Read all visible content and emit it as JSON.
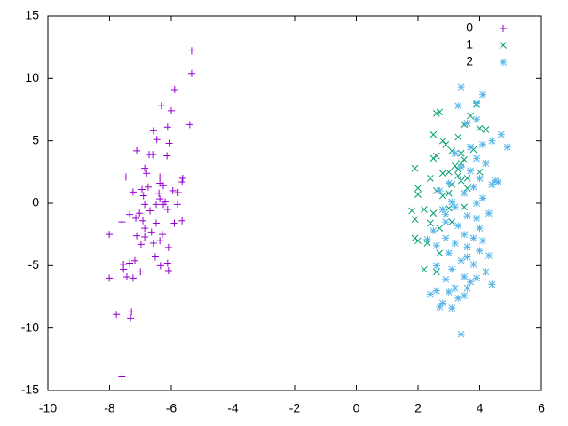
{
  "chart_data": {
    "type": "scatter",
    "xlim": [
      -10,
      6
    ],
    "xticks": [
      -10,
      -8,
      -6,
      -4,
      -2,
      0,
      2,
      4,
      6
    ],
    "ylim": [
      -15,
      15
    ],
    "yticks": [
      -15,
      -10,
      -5,
      0,
      5,
      10,
      15
    ],
    "legend": "top right",
    "series": [
      {
        "name": "0",
        "color": "#9400d3",
        "marker": "plus",
        "x": [
          -5.34,
          -5.34,
          -5.89,
          -6.32,
          -6.0,
          -5.4,
          -6.58,
          -6.12,
          -6.47,
          -6.07,
          -7.12,
          -6.6,
          -6.72,
          -6.14,
          -6.86,
          -7.47,
          -5.63,
          -5.65,
          -6.8,
          -6.37,
          -6.37,
          -6.26,
          -6.75,
          -6.95,
          -5.95,
          -7.24,
          -5.78,
          -6.4,
          -6.9,
          -6.37,
          -6.26,
          -6.2,
          -6.49,
          -6.86,
          -5.8,
          -6.69,
          -7.35,
          -7.03,
          -7.15,
          -6.92,
          -6.12,
          -5.65,
          -5.9,
          -7.6,
          -6.49,
          -6.86,
          -6.64,
          -7.12,
          -6.86,
          -6.29,
          -8.01,
          -6.37,
          -6.58,
          -6.98,
          -6.09,
          -6.52,
          -7.18,
          -7.35,
          -7.55,
          -6.12,
          -6.35,
          -7.55,
          -6.09,
          -7.0,
          -7.44,
          -8.01,
          -7.24,
          -7.78,
          -7.29,
          -7.32,
          -7.6
        ],
        "values": [
          12.2,
          10.4,
          9.1,
          7.8,
          7.4,
          6.3,
          5.8,
          6.1,
          5.1,
          4.8,
          4.2,
          3.9,
          3.9,
          3.8,
          2.8,
          2.1,
          2.0,
          1.7,
          2.4,
          2.1,
          1.6,
          1.4,
          1.3,
          1.1,
          1.0,
          0.9,
          0.85,
          0.8,
          0.6,
          0.35,
          -0.1,
          0.1,
          -0.1,
          -0.1,
          -0.1,
          -0.6,
          -0.9,
          -0.8,
          -1.2,
          -1.4,
          -0.5,
          -1.4,
          -1.6,
          -1.5,
          -1.6,
          -2.0,
          -2.3,
          -2.6,
          -2.7,
          -2.5,
          -2.5,
          -3.0,
          -3.2,
          -3.3,
          -3.55,
          -4.3,
          -4.6,
          -4.8,
          -4.9,
          -4.8,
          -5.0,
          -5.3,
          -5.4,
          -5.5,
          -5.9,
          -6.0,
          -6.0,
          -8.9,
          -8.7,
          -9.2,
          -13.9
        ]
      },
      {
        "name": "1",
        "color": "#009e73",
        "marker": "cross",
        "x": [
          1.9,
          2.0,
          2.4,
          2.6,
          2.7,
          2.8,
          2.6,
          2.9,
          3.1,
          3.3,
          3.2,
          3.3,
          3.4,
          3.5,
          3.0,
          2.8,
          3.3,
          3.6,
          3.4,
          3.1,
          2.6,
          2.8,
          2.5,
          3.0,
          2.2,
          1.9,
          1.9,
          2.0,
          2.3,
          2.7,
          2.2,
          2.6,
          3.5,
          3.7,
          3.9,
          4.0,
          3.8,
          3.6,
          4.0,
          3.5,
          2.4,
          2.7,
          2.0,
          3.4,
          2.5,
          3.0,
          1.8,
          3.1,
          2.5,
          4.2
        ],
        "values": [
          2.8,
          1.2,
          2.0,
          7.2,
          7.3,
          5.0,
          3.8,
          4.7,
          4.2,
          5.3,
          3.0,
          2.7,
          3.2,
          3.5,
          2.5,
          2.4,
          2.2,
          2.0,
          1.8,
          1.5,
          1.0,
          0.6,
          -0.8,
          -0.4,
          -0.5,
          -1.3,
          -2.8,
          -3.0,
          -3.2,
          -4.0,
          -5.3,
          -5.5,
          6.3,
          7.0,
          7.9,
          6.0,
          4.3,
          1.2,
          2.5,
          -0.3,
          -1.6,
          -2.0,
          0.7,
          4.0,
          3.6,
          0.8,
          -0.6,
          -1.5,
          5.5,
          5.9
        ]
      },
      {
        "name": "2",
        "color": "#56b4e9",
        "marker": "star",
        "x": [
          3.4,
          3.3,
          4.1,
          3.9,
          3.6,
          3.9,
          4.7,
          4.4,
          4.1,
          4.9,
          3.7,
          3.2,
          3.9,
          4.2,
          3.4,
          3.7,
          4.0,
          4.5,
          4.6,
          3.0,
          3.8,
          2.7,
          3.5,
          4.1,
          3.9,
          3.2,
          2.8,
          4.3,
          3.6,
          3.9,
          2.9,
          3.3,
          4.0,
          2.5,
          3.5,
          2.9,
          3.8,
          4.1,
          3.2,
          2.6,
          3.6,
          4.0,
          3.0,
          3.6,
          3.4,
          3.8,
          2.6,
          3.1,
          4.2,
          3.5,
          2.9,
          3.7,
          4.4,
          3.2,
          2.6,
          2.4,
          3.0,
          3.3,
          2.8,
          3.5,
          2.7,
          3.1,
          3.4,
          3.9,
          4.3,
          2.3,
          3.1,
          4.4,
          2.9,
          3.6
        ],
        "values": [
          9.3,
          7.8,
          8.7,
          8.0,
          6.4,
          6.7,
          5.5,
          5.0,
          4.7,
          4.5,
          4.5,
          4.0,
          3.6,
          3.2,
          2.9,
          2.6,
          2.0,
          1.8,
          1.7,
          1.6,
          1.3,
          1.0,
          0.8,
          0.4,
          0.0,
          -0.3,
          -0.5,
          -0.8,
          -1.0,
          -1.2,
          -1.5,
          -1.8,
          -2.0,
          -2.2,
          -2.5,
          -2.8,
          -2.8,
          -3.0,
          -3.2,
          -3.4,
          -3.5,
          -3.8,
          -4.0,
          -4.3,
          -4.6,
          -4.9,
          -5.0,
          -5.3,
          -5.5,
          -5.9,
          -6.1,
          -6.3,
          -6.5,
          -6.8,
          -7.0,
          -7.3,
          -7.1,
          -7.6,
          -8.0,
          -7.4,
          -8.3,
          -8.4,
          -10.5,
          -6.0,
          -4.2,
          -2.9,
          0.1,
          1.5,
          -0.9,
          -6.8
        ]
      }
    ]
  }
}
